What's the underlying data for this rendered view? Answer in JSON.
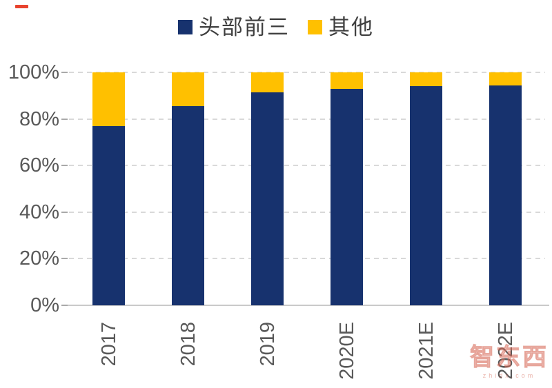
{
  "legend": {
    "items": [
      {
        "label": "头部前三",
        "color": "#17326E"
      },
      {
        "label": "其他",
        "color": "#FFC000"
      }
    ]
  },
  "chart_data": {
    "type": "bar",
    "stacked": true,
    "stack_unit": "percent",
    "title": "",
    "xlabel": "",
    "ylabel": "",
    "categories": [
      "2017",
      "2018",
      "2019",
      "2020E",
      "2021E",
      "2022E"
    ],
    "series": [
      {
        "name": "头部前三",
        "color": "#17326E",
        "values": [
          77,
          85.5,
          91.5,
          93,
          94,
          94.5
        ]
      },
      {
        "name": "其他",
        "color": "#FFC000",
        "values": [
          23,
          14.5,
          8.5,
          7,
          6,
          5.5
        ]
      }
    ],
    "ylim": [
      0,
      100
    ],
    "yticks": [
      {
        "value": 0,
        "label": "0%"
      },
      {
        "value": 20,
        "label": "20%"
      },
      {
        "value": 40,
        "label": "40%"
      },
      {
        "value": 60,
        "label": "60%"
      },
      {
        "value": 80,
        "label": "80%"
      },
      {
        "value": 100,
        "label": "100%"
      }
    ],
    "grid": "horizontal-dashed",
    "legend_position": "top-center"
  },
  "watermark": {
    "text": "智东西",
    "subtext": "zhidx.com"
  },
  "corner_mark": {
    "color": "#E8432E"
  },
  "colors": {
    "background": "#FFFFFF",
    "grid": "#D9D9D9",
    "axis": "#C9C9C9",
    "tick": "#A9A9A9",
    "axis_label": "#595959",
    "legend_text": "#3F3F3F"
  }
}
